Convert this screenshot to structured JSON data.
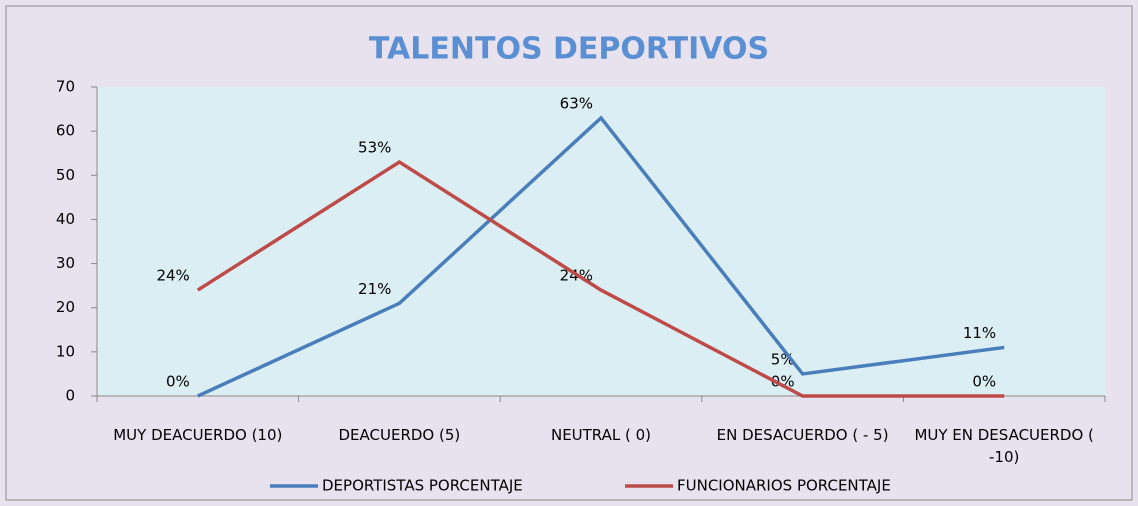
{
  "chart_data": {
    "type": "line",
    "title": "TALENTOS   DEPORTIVOS",
    "categories": [
      "MUY  DEACUERDO (10)",
      "DEACUERDO   (5)",
      "NEUTRAL  ( 0)",
      "EN DESACUERDO  ( - 5)",
      "MUY EN DESACUERDO ( -10)"
    ],
    "series": [
      {
        "name": "DEPORTISTAS  PORCENTAJE",
        "color": "#4a7ebb",
        "values": [
          0,
          21,
          63,
          5,
          11
        ],
        "value_labels": [
          "0%",
          "21%",
          "63%",
          "5%",
          "11%"
        ]
      },
      {
        "name": "FUNCIONARIOS  PORCENTAJE",
        "color": "#be4b48",
        "values": [
          24,
          53,
          24,
          0,
          0
        ],
        "value_labels": [
          "24%",
          "53%",
          "24%",
          "0%",
          "0%"
        ]
      }
    ],
    "ylim": [
      0,
      70
    ],
    "yticks": [
      0,
      10,
      20,
      30,
      40,
      50,
      60,
      70
    ],
    "grid": false,
    "legend": "bottom"
  }
}
